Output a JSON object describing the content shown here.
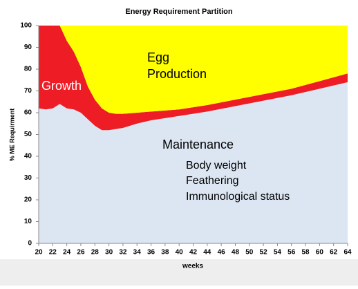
{
  "chart_data": {
    "type": "stacked_area",
    "title": "Energy Requirement Partition",
    "x_label": "weeks",
    "y_label": "% ME Requirment",
    "x": [
      20,
      21,
      22,
      23,
      24,
      25,
      26,
      27,
      28,
      29,
      30,
      31,
      32,
      34,
      36,
      40,
      44,
      48,
      52,
      56,
      60,
      64
    ],
    "series": [
      {
        "name": "Maintenance",
        "color": "#dce6f2",
        "values": [
          62,
          61.5,
          62,
          64,
          62,
          61.5,
          60,
          57,
          54,
          52,
          52,
          52.5,
          53,
          55,
          56.5,
          58.5,
          60.5,
          63,
          65.5,
          68,
          71,
          74
        ]
      },
      {
        "name": "Growth",
        "color": "#ee1c25",
        "values": [
          38,
          38.5,
          38,
          36,
          31,
          26.5,
          21,
          15,
          12,
          10,
          8,
          7,
          6.5,
          5,
          4,
          3,
          3,
          3,
          3,
          3,
          3.5,
          4
        ]
      },
      {
        "color": "#ffff00",
        "values": [
          0,
          0,
          0,
          0,
          7,
          12,
          19,
          28,
          34,
          38,
          40,
          40.5,
          40.5,
          40,
          39.5,
          38.5,
          36.5,
          34,
          31.5,
          29,
          25.5,
          22
        ]
      }
    ],
    "annotations": [
      "Egg",
      "Production",
      "Body weight",
      "Feathering",
      "Immunological status"
    ],
    "xlim": [
      20,
      64
    ],
    "ylim": [
      0,
      100
    ],
    "xticks": [
      20,
      22,
      24,
      26,
      28,
      30,
      32,
      34,
      36,
      38,
      40,
      42,
      44,
      46,
      48,
      50,
      52,
      54,
      56,
      58,
      60,
      62,
      64
    ],
    "yticks": [
      0,
      10,
      20,
      30,
      40,
      50,
      60,
      70,
      80,
      90,
      100
    ]
  }
}
